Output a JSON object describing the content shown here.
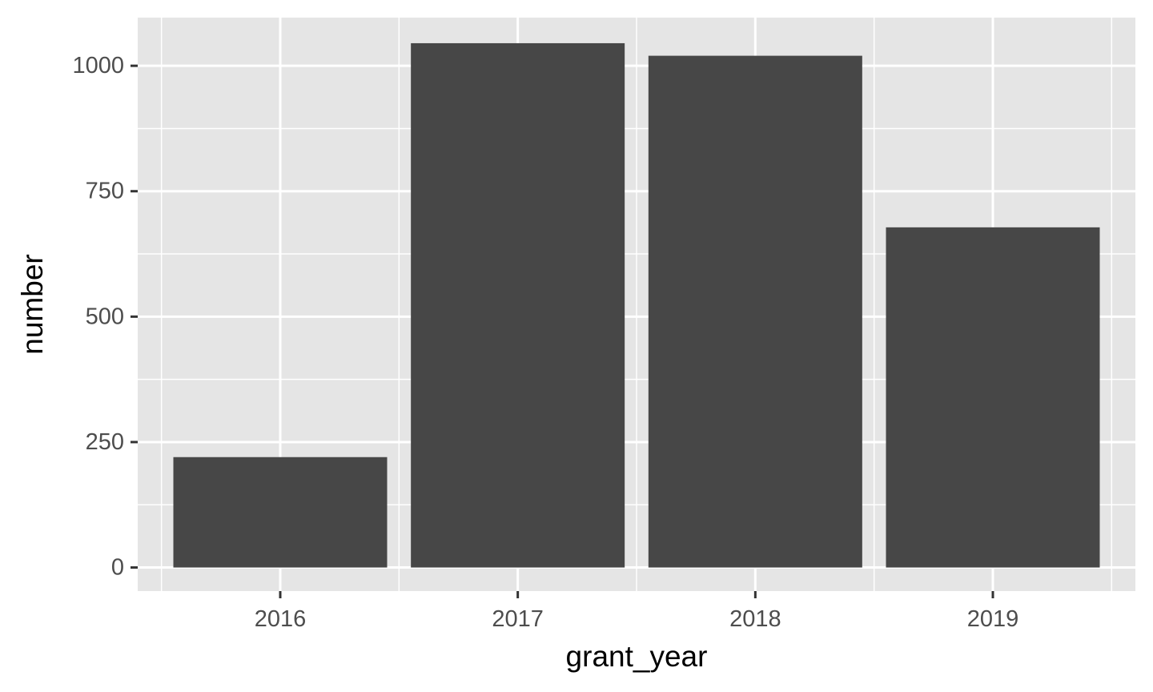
{
  "chart_data": {
    "type": "bar",
    "categories": [
      "2016",
      "2017",
      "2018",
      "2019"
    ],
    "values": [
      220,
      1045,
      1020,
      678
    ],
    "xlabel": "grant_year",
    "ylabel": "number",
    "ylim": [
      -47,
      1096
    ],
    "yticks": [
      0,
      250,
      500,
      750,
      1000
    ],
    "y_tick_labels": [
      "0",
      "250",
      "500",
      "750",
      "1000"
    ],
    "grid": true,
    "legend": "none",
    "colors": {
      "panel_background": "#e5e5e5",
      "grid_line": "#ffffff",
      "bar_fill": "#474747",
      "tick_mark": "#333333",
      "tick_text": "#4d4d4d",
      "title_text": "#000000"
    }
  }
}
